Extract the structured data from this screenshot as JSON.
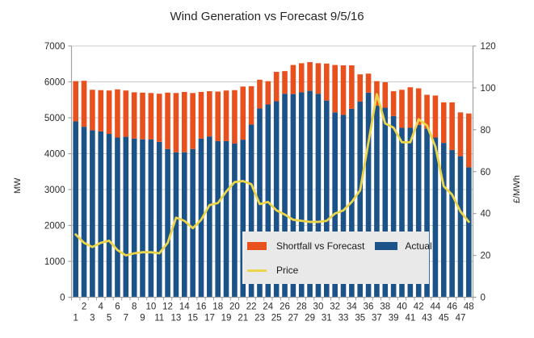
{
  "title": "Wind Generation vs Forecast 9/5/16",
  "y_axis_left": {
    "label": "MW",
    "min": 0,
    "max": 7000,
    "step": 1000
  },
  "y_axis_right": {
    "label": "£/MWh",
    "min": 0,
    "max": 120,
    "step": 20
  },
  "legend": {
    "shortfall": "Shortfall vs Forecast",
    "actual": "Actual",
    "price": "Price"
  },
  "colors": {
    "actual": "#1b5288",
    "shortfall": "#e8501e",
    "price": "#edd54a",
    "legend_bg": "#e9e9e9",
    "grid": "#cccccc",
    "axis": "#a3a3a3",
    "text": "#2b2b2b"
  },
  "chart_data": {
    "type": "bar",
    "title": "Wind Generation vs Forecast 9/5/16",
    "xlabel": "",
    "ylabel_left": "MW",
    "ylabel_right": "£/MWh",
    "ylim_left": [
      0,
      7000
    ],
    "ylim_right": [
      0,
      120
    ],
    "grid": true,
    "legend_position": "inside-bottom-center",
    "categories": [
      1,
      2,
      3,
      4,
      5,
      6,
      7,
      8,
      9,
      10,
      11,
      12,
      13,
      14,
      15,
      16,
      17,
      18,
      19,
      20,
      21,
      22,
      23,
      24,
      25,
      26,
      27,
      28,
      29,
      30,
      31,
      32,
      33,
      34,
      35,
      36,
      37,
      38,
      39,
      40,
      41,
      42,
      43,
      44,
      45,
      46,
      47,
      48
    ],
    "series": [
      {
        "name": "Actual",
        "type": "bar",
        "stacked": true,
        "axis": "left",
        "values": [
          4900,
          4750,
          4650,
          4620,
          4550,
          4450,
          4470,
          4420,
          4400,
          4400,
          4330,
          4130,
          4040,
          4040,
          4130,
          4420,
          4480,
          4350,
          4350,
          4280,
          4390,
          4810,
          5260,
          5370,
          5460,
          5670,
          5660,
          5710,
          5750,
          5670,
          5480,
          5150,
          5080,
          5250,
          5450,
          5700,
          5340,
          5280,
          5050,
          4720,
          4720,
          4800,
          4700,
          4450,
          4300,
          4100,
          3930,
          3620
        ]
      },
      {
        "name": "Shortfall vs Forecast",
        "type": "bar",
        "stacked": true,
        "axis": "left",
        "values": [
          1120,
          1280,
          1130,
          1150,
          1210,
          1340,
          1290,
          1290,
          1300,
          1290,
          1340,
          1570,
          1650,
          1680,
          1560,
          1300,
          1260,
          1380,
          1410,
          1490,
          1480,
          1070,
          800,
          650,
          820,
          630,
          810,
          810,
          800,
          850,
          1030,
          1320,
          1380,
          1210,
          760,
          530,
          680,
          710,
          690,
          1060,
          1130,
          1020,
          940,
          1170,
          1130,
          1330,
          1220,
          1500
        ]
      },
      {
        "name": "Price",
        "type": "line",
        "axis": "right",
        "values": [
          30,
          26,
          24,
          26,
          27,
          22.5,
          20,
          21,
          21.5,
          21.5,
          21,
          26,
          38,
          36.5,
          33,
          37,
          44,
          45,
          50.5,
          55,
          55.5,
          54,
          44.5,
          45.5,
          41.5,
          39.5,
          37,
          36.5,
          36,
          36,
          36.5,
          40,
          41.5,
          45.5,
          51,
          74,
          97,
          83,
          81,
          74,
          74,
          85,
          82,
          72,
          53,
          49,
          41,
          36
        ]
      }
    ],
    "forecast_total": [
      6020,
      6030,
      5780,
      5770,
      5760,
      5790,
      5760,
      5710,
      5700,
      5690,
      5670,
      5700,
      5690,
      5720,
      5690,
      5720,
      5740,
      5730,
      5760,
      5770,
      5870,
      5880,
      6060,
      6020,
      6280,
      6300,
      6470,
      6520,
      6550,
      6520,
      6510,
      6470,
      6460,
      6460,
      6210,
      6230,
      6020,
      5990,
      5740,
      5780,
      5850,
      5820,
      5640,
      5620,
      5430,
      5430,
      5150,
      5120
    ]
  }
}
